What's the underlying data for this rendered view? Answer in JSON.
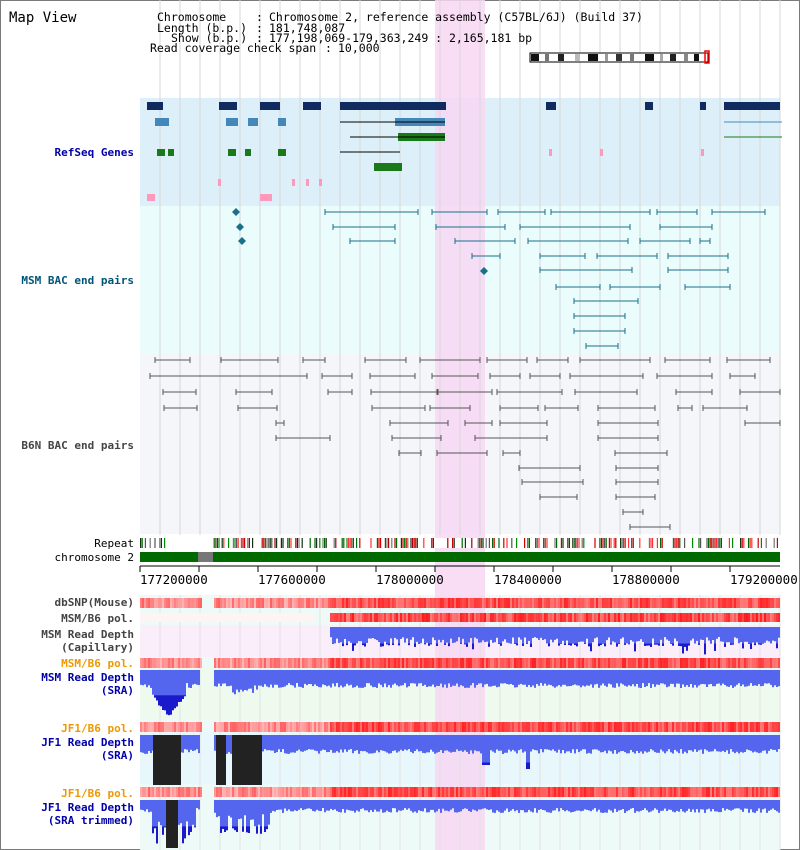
{
  "page": {
    "title": "Map View"
  },
  "header": {
    "chromosome_key": "Chromosome",
    "chromosome_value": "Chromosome 2, reference assembly (C57BL/6J) (Build 37)",
    "length_key": "Length (b.p.)",
    "length_value": "181,748,087",
    "show_key": "Show (b.p.)",
    "show_value": "177,198,069-179,363,249 : 2,165,181 bp",
    "coverage_key": "Read coverage check span",
    "coverage_value": "10,000"
  },
  "tracks": {
    "refseq": "RefSeq Genes",
    "msm_bac": "MSM BAC end pairs",
    "b6n_bac": "B6N BAC end pairs",
    "repeat": "Repeat",
    "chromosome": "chromosome 2",
    "dbsnp": "dbSNP(Mouse)",
    "msm_b6_pol_1": "MSM/B6 pol.",
    "msm_depth_cap_1": "MSM Read Depth",
    "msm_depth_cap_2": "(Capillary)",
    "msm_b6_pol_2": "MSM/B6 pol.",
    "msm_depth_sra_1": "MSM Read Depth",
    "msm_depth_sra_2": "(SRA)",
    "jf1_b6_pol_1": "JF1/B6 pol.",
    "jf1_depth_sra_1": "JF1 Read Depth",
    "jf1_depth_sra_2": "(SRA)",
    "jf1_b6_pol_2": "JF1/B6 pol.",
    "jf1_depth_trim_1": "JF1 Read Depth",
    "jf1_depth_trim_2": "(SRA trimmed)"
  },
  "axis": {
    "ticks": [
      "177200000",
      "177600000",
      "178000000",
      "178400000",
      "178800000",
      "179200000"
    ]
  },
  "colors": {
    "refseq_label": "#0000aa",
    "msm_bac_label": "#005577",
    "b6n_bac_label": "#444444",
    "pol_orange": "#ee9900",
    "depth_blue": "#0000aa",
    "refseq_bg": "#ddf0fa",
    "msm_bac_bg": "#eafcfc",
    "b6n_bac_bg": "#f4f6fa",
    "highlight": "#f7d7f3"
  }
}
